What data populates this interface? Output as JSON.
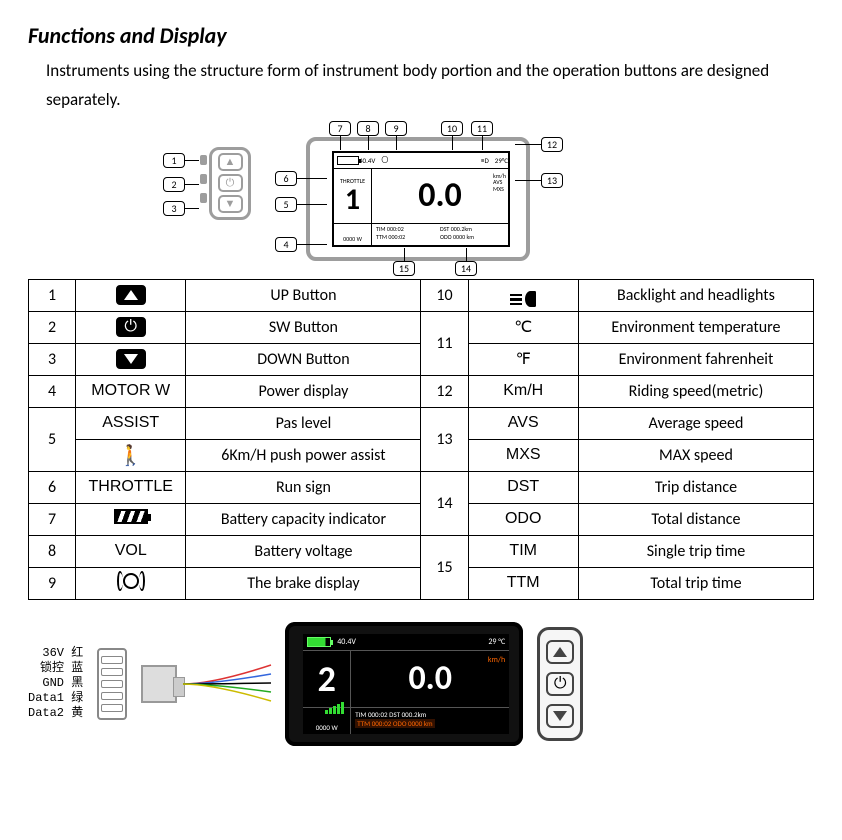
{
  "title": "Functions and Display",
  "intro": "Instruments using the structure form of instrument body portion and the operation buttons are designed separately.",
  "schematic_callouts": [
    "1",
    "2",
    "3",
    "4",
    "5",
    "6",
    "7",
    "8",
    "9",
    "10",
    "11",
    "12",
    "13",
    "14",
    "15"
  ],
  "schematic_display": {
    "voltage": "40.4V",
    "temp": "29°C",
    "throttle_label": "THROTTLE",
    "assist": "1",
    "speed": "0.0",
    "units_top": "km/h",
    "units_avs": "AVS",
    "units_mxs": "MXS",
    "tim": "TIM 000:02",
    "dst": "DST 000.2km",
    "ttm": "TTM 000:02",
    "odo": "ODO 0000 km",
    "power": "0000 W"
  },
  "legend_left": [
    {
      "n": "1",
      "sym": "up",
      "desc": "UP Button"
    },
    {
      "n": "2",
      "sym": "sw",
      "desc": "SW Button"
    },
    {
      "n": "3",
      "sym": "down",
      "desc": "DOWN Button"
    },
    {
      "n": "4",
      "sym": "MOTOR W",
      "desc": "Power display"
    },
    {
      "n": "5a",
      "sym": "ASSIST",
      "desc": "Pas level"
    },
    {
      "n": "5b",
      "sym": "walk",
      "desc": "6Km/H push power assist"
    },
    {
      "n": "6",
      "sym": "THROTTLE",
      "desc": "Run sign"
    },
    {
      "n": "7",
      "sym": "battery",
      "desc": "Battery capacity indicator"
    },
    {
      "n": "8",
      "sym": "VOL",
      "desc": "Battery voltage"
    },
    {
      "n": "9",
      "sym": "brake",
      "desc": "The brake display"
    }
  ],
  "legend_right": [
    {
      "n": "10",
      "sym": "headlight",
      "desc": "Backlight and headlights"
    },
    {
      "n": "11a",
      "sym": "℃",
      "desc": "Environment temperature"
    },
    {
      "n": "11b",
      "sym": "℉",
      "desc": "Environment fahrenheit"
    },
    {
      "n": "12",
      "sym": "Km/H",
      "desc": "Riding speed(metric)"
    },
    {
      "n": "13a",
      "sym": "AVS",
      "desc": "Average speed"
    },
    {
      "n": "13b",
      "sym": "MXS",
      "desc": "MAX speed"
    },
    {
      "n": "14a",
      "sym": "DST",
      "desc": "Trip distance"
    },
    {
      "n": "14b",
      "sym": "ODO",
      "desc": "Total distance"
    },
    {
      "n": "15a",
      "sym": "TIM",
      "desc": "Single trip time"
    },
    {
      "n": "15b",
      "sym": "TTM",
      "desc": "Total trip time"
    }
  ],
  "pinout": [
    {
      "label": "36V",
      "cn": "红",
      "color": "#d33"
    },
    {
      "label": "锁控",
      "cn": "蓝",
      "color": "#36d"
    },
    {
      "label": "GND",
      "cn": "黑",
      "color": "#000"
    },
    {
      "label": "Data1",
      "cn": "绿",
      "color": "#2a2"
    },
    {
      "label": "Data2",
      "cn": "黄",
      "color": "#cb0"
    }
  ],
  "color_display": {
    "voltage": "40.4V",
    "temp": "29 °C",
    "assist": "2",
    "speed": "0.0",
    "unit": "km/h",
    "power": "0000 W",
    "line1": "TIM 000:02  DST 000.2km",
    "line2": "TTM 000:02  ODO 0000 km",
    "bg": "#000000",
    "accent": "#ff7a00",
    "battery_color": "#33dd33"
  }
}
